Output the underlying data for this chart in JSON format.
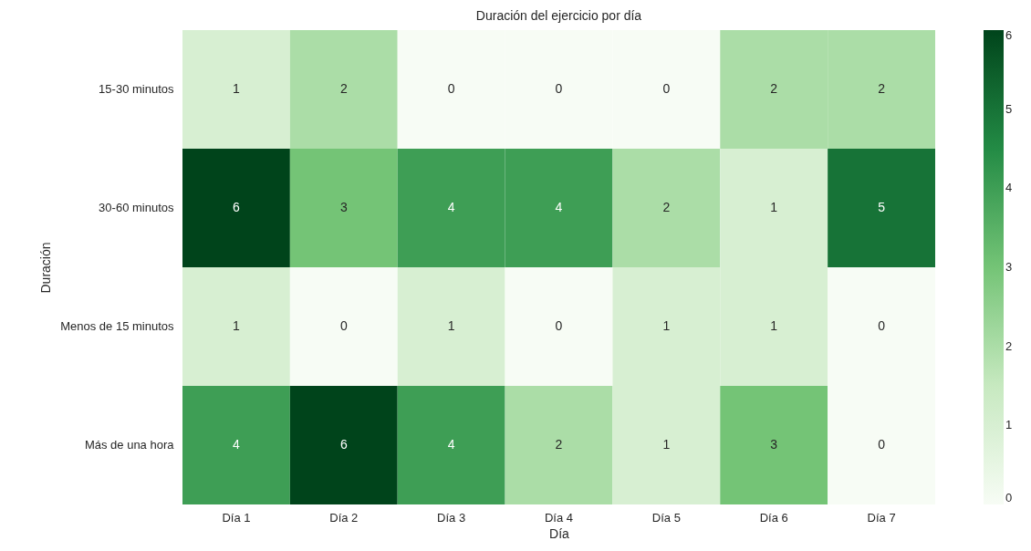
{
  "chart_data": {
    "type": "heatmap",
    "title": "Duración del ejercicio por día",
    "xlabel": "Día",
    "ylabel": "Duración",
    "categories": [
      "Día 1",
      "Día 2",
      "Día 3",
      "Día 4",
      "Día 5",
      "Día 6",
      "Día 7"
    ],
    "y_categories": [
      "15-30 minutos",
      "30-60 minutos",
      "Menos de 15 minutos",
      "Más de una hora"
    ],
    "cells": [
      [
        1,
        2,
        0,
        0,
        0,
        2,
        2
      ],
      [
        6,
        3,
        4,
        4,
        2,
        1,
        5
      ],
      [
        1,
        0,
        1,
        0,
        1,
        1,
        0
      ],
      [
        4,
        6,
        4,
        2,
        1,
        3,
        0
      ]
    ],
    "clim": [
      0,
      6
    ],
    "cticks": [
      0,
      1,
      2,
      3,
      4,
      5,
      6
    ],
    "data_labels": true
  }
}
